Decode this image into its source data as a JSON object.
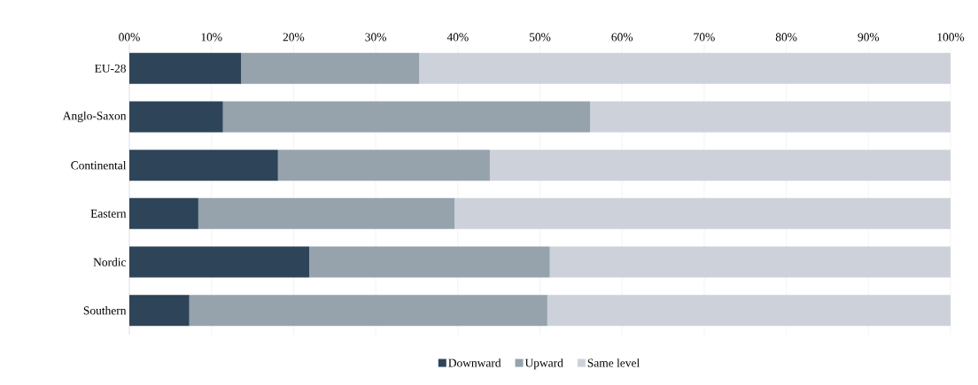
{
  "chart_data": {
    "type": "bar",
    "orientation": "horizontal",
    "stacked": true,
    "categories": [
      "EU-28",
      "Anglo-Saxon",
      "Continental",
      "Eastern",
      "Nordic",
      "Southern"
    ],
    "series": [
      {
        "name": "Downward",
        "color": "#2e4459",
        "values": [
          13.6,
          11.4,
          18.1,
          8.4,
          21.9,
          7.3
        ]
      },
      {
        "name": "Upward",
        "color": "#96a3ad",
        "values": [
          21.7,
          44.7,
          25.8,
          31.2,
          29.3,
          43.6
        ]
      },
      {
        "name": "Same level",
        "color": "#cdd2da",
        "values": [
          64.7,
          43.9,
          56.1,
          60.4,
          48.8,
          49.1
        ]
      }
    ],
    "xlim": [
      0,
      100
    ],
    "xticks": [
      {
        "value": 0,
        "label": "00%"
      },
      {
        "value": 10,
        "label": "10%"
      },
      {
        "value": 20,
        "label": "20%"
      },
      {
        "value": 30,
        "label": "30%"
      },
      {
        "value": 40,
        "label": "40%"
      },
      {
        "value": 50,
        "label": "50%"
      },
      {
        "value": 60,
        "label": "60%"
      },
      {
        "value": 70,
        "label": "70%"
      },
      {
        "value": 80,
        "label": "80%"
      },
      {
        "value": 90,
        "label": "90%"
      },
      {
        "value": 100,
        "label": "100%"
      }
    ],
    "grid": "x",
    "legend": "bottom"
  }
}
